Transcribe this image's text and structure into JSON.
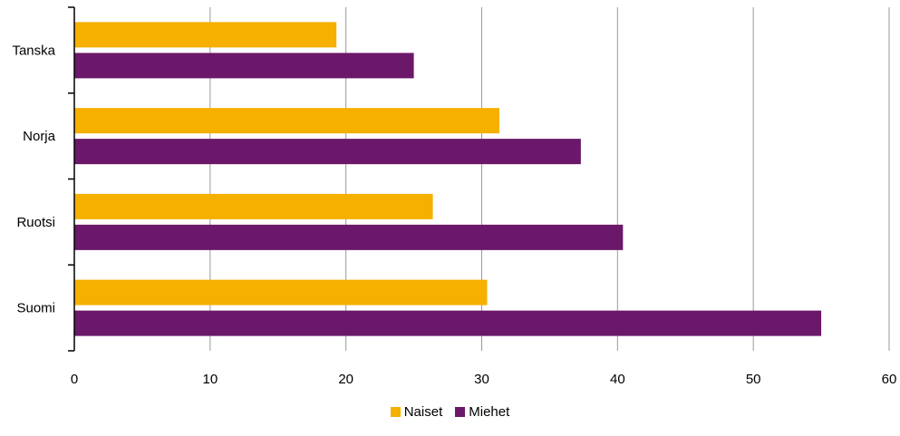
{
  "chart_data": {
    "type": "bar",
    "orientation": "horizontal",
    "categories": [
      "Tanska",
      "Norja",
      "Ruotsi",
      "Suomi"
    ],
    "series": [
      {
        "name": "Naiset",
        "color": "#f5b000",
        "values": [
          19.3,
          31.3,
          26.4,
          30.4
        ]
      },
      {
        "name": "Miehet",
        "color": "#6b186a",
        "values": [
          25.0,
          37.3,
          40.4,
          55.0
        ]
      }
    ],
    "x_ticks": [
      "0",
      "10",
      "20",
      "30",
      "40",
      "50",
      "60"
    ],
    "xlim": [
      0,
      60
    ],
    "grid": "vertical",
    "legend_position": "bottom"
  }
}
